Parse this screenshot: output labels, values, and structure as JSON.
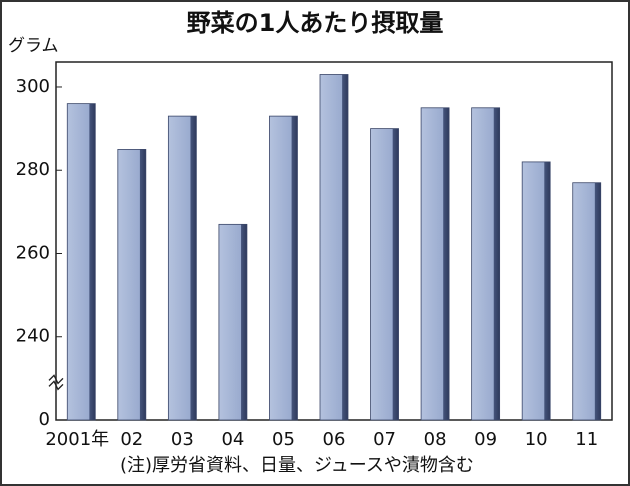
{
  "chart_data": {
    "type": "bar",
    "title": "野菜の1人あたり摂取量",
    "y_unit": "グラム",
    "note": "(注)厚労省資料、日量、ジュースや漬物含む",
    "categories": [
      "2001年",
      "02",
      "03",
      "04",
      "05",
      "06",
      "07",
      "08",
      "09",
      "10",
      "11"
    ],
    "values": [
      296,
      285,
      293,
      267,
      293,
      303,
      290,
      295,
      295,
      282,
      277
    ],
    "color": "#a3b3d3",
    "ylim": [
      0,
      306
    ],
    "yticks": [
      0,
      240,
      260,
      280,
      300
    ],
    "axis_break": true,
    "grid": false
  }
}
